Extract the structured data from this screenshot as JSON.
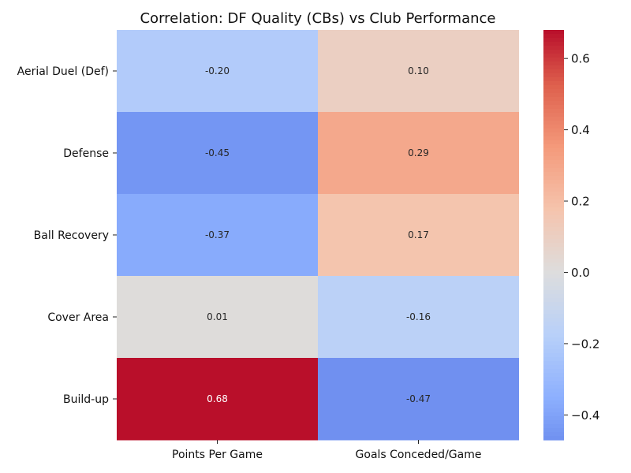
{
  "chart_data": {
    "type": "heatmap",
    "title": "Correlation: DF Quality (CBs) vs Club Performance",
    "xlabel": "",
    "ylabel": "",
    "rows": [
      "Aerial Duel (Def)",
      "Defense",
      "Ball Recovery",
      "Cover Area",
      "Build-up"
    ],
    "columns": [
      "Points Per Game",
      "Goals Conceded/Game"
    ],
    "values": [
      [
        -0.2,
        0.1
      ],
      [
        -0.45,
        0.29
      ],
      [
        -0.37,
        0.17
      ],
      [
        0.01,
        -0.16
      ],
      [
        0.68,
        -0.47
      ]
    ],
    "value_labels": [
      [
        "-0.20",
        "0.10"
      ],
      [
        "-0.45",
        "0.29"
      ],
      [
        "-0.37",
        "0.17"
      ],
      [
        "0.01",
        "-0.16"
      ],
      [
        "0.68",
        "-0.47"
      ]
    ],
    "colormap": "coolwarm",
    "vmin": -0.47,
    "vmax": 0.68,
    "colorbar": {
      "ticks": [
        0.6,
        0.4,
        0.2,
        0.0,
        -0.2,
        -0.4
      ],
      "tick_labels": [
        "0.6",
        "0.4",
        "0.2",
        "0.0",
        "−0.2",
        "−0.4"
      ]
    },
    "grid": false,
    "legend": "colorbar-right"
  }
}
